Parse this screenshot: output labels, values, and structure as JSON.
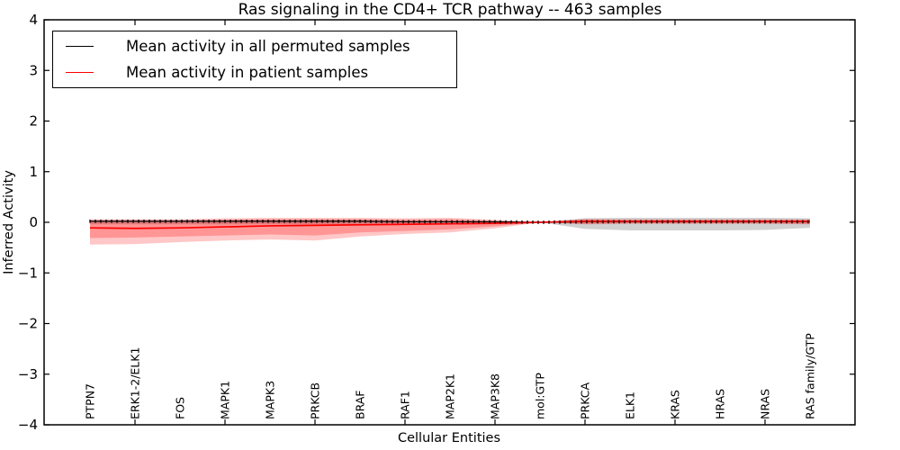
{
  "figure": {
    "title": "Ras signaling in the CD4+ TCR pathway -- 463 samples",
    "xlabel": "Cellular Entities",
    "ylabel": "Inferred Activity"
  },
  "legend": {
    "items": [
      {
        "label": "Mean activity in all permuted samples",
        "color": "#000000"
      },
      {
        "label": "Mean activity in patient samples",
        "color": "#ff0000"
      }
    ]
  },
  "chart_data": {
    "type": "line",
    "title": "Ras signaling in the CD4+ TCR pathway -- 463 samples",
    "xlabel": "Cellular Entities",
    "ylabel": "Inferred Activity",
    "ylim": [
      -4,
      4
    ],
    "yticks": [
      -4,
      -3,
      -2,
      -1,
      0,
      1,
      2,
      3,
      4
    ],
    "grid": false,
    "legend_position": "upper left",
    "categories": [
      "PTPN7",
      "ERK1-2/ELK1",
      "FOS",
      "MAPK1",
      "MAPK3",
      "PRKCB",
      "BRAF",
      "RAF1",
      "MAP2K1",
      "MAP3K8",
      "mol:GTP",
      "PRKCA",
      "ELK1",
      "KRAS",
      "HRAS",
      "NRAS",
      "RAS family/GTP"
    ],
    "series": [
      {
        "name": "Mean activity in all permuted samples",
        "color": "#000000",
        "values": [
          0.02,
          0.02,
          0.02,
          0.02,
          0.02,
          0.02,
          0.02,
          0.01,
          0.01,
          0.01,
          0.0,
          0.01,
          0.01,
          0.01,
          0.01,
          0.01,
          0.01
        ]
      },
      {
        "name": "Mean activity in patient samples",
        "color": "#ff0000",
        "values": [
          -0.11,
          -0.12,
          -0.11,
          -0.09,
          -0.07,
          -0.06,
          -0.05,
          -0.04,
          -0.03,
          -0.02,
          0.0,
          0.02,
          0.02,
          0.02,
          0.02,
          0.02,
          0.02
        ]
      }
    ],
    "bands": [
      {
        "name": "permuted-samples-range",
        "color": "#999999",
        "opacity": 0.45,
        "hi": [
          0.05,
          0.05,
          0.05,
          0.05,
          0.05,
          0.05,
          0.05,
          0.04,
          0.04,
          0.03,
          0.0,
          0.08,
          0.09,
          0.09,
          0.09,
          0.09,
          0.08
        ],
        "lo": [
          -0.04,
          -0.04,
          -0.04,
          -0.04,
          -0.04,
          -0.04,
          -0.04,
          -0.03,
          -0.03,
          -0.02,
          0.0,
          -0.13,
          -0.16,
          -0.16,
          -0.16,
          -0.15,
          -0.11
        ]
      },
      {
        "name": "patient-samples-range-outer",
        "color": "#ff0000",
        "opacity": 0.22,
        "hi": [
          0.06,
          0.06,
          0.06,
          0.08,
          0.09,
          0.09,
          0.09,
          0.08,
          0.09,
          0.05,
          0.0,
          0.07,
          0.06,
          0.06,
          0.06,
          0.06,
          0.06
        ],
        "lo": [
          -0.44,
          -0.43,
          -0.39,
          -0.36,
          -0.34,
          -0.36,
          -0.28,
          -0.23,
          -0.2,
          -0.12,
          0.0,
          -0.04,
          -0.03,
          -0.03,
          -0.03,
          -0.03,
          -0.04
        ]
      },
      {
        "name": "patient-samples-range-inner",
        "color": "#ff0000",
        "opacity": 0.25,
        "hi": [
          0.03,
          0.03,
          0.03,
          0.05,
          0.06,
          0.06,
          0.06,
          0.05,
          0.06,
          0.03,
          0.0,
          0.05,
          0.04,
          0.04,
          0.04,
          0.04,
          0.04
        ],
        "lo": [
          -0.31,
          -0.3,
          -0.28,
          -0.26,
          -0.24,
          -0.26,
          -0.2,
          -0.17,
          -0.14,
          -0.08,
          0.0,
          -0.03,
          -0.02,
          -0.02,
          -0.02,
          -0.02,
          -0.03
        ]
      }
    ]
  }
}
